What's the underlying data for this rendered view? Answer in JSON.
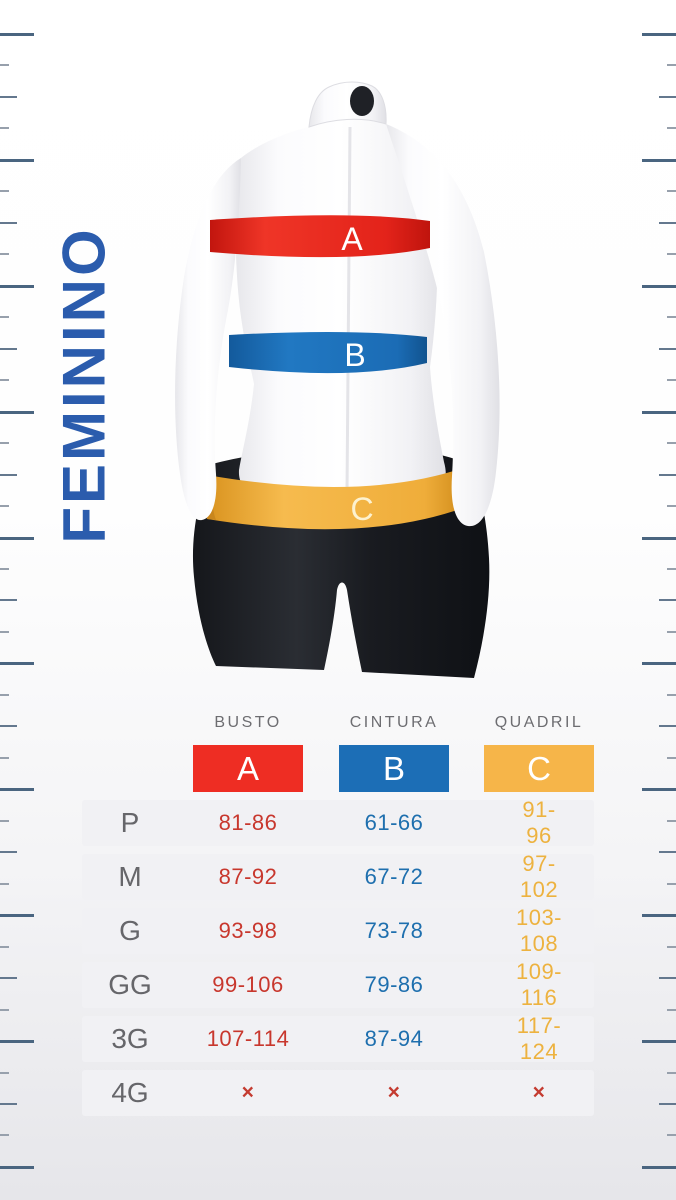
{
  "title": "FEMININO",
  "colors": {
    "red": "#ee2d23",
    "blue": "#1c6eb6",
    "yellow": "#f6b549",
    "band_red": "#e3231a",
    "band_blue": "#1b6cb5",
    "band_yellow": "#efad3a",
    "title_blue": "#2b5cad",
    "x_mark_red": "#c43b30"
  },
  "figure": {
    "bands": [
      {
        "name": "bust",
        "letter": "A",
        "color": "#e3231a"
      },
      {
        "name": "waist",
        "letter": "B",
        "color": "#1b6cb5"
      },
      {
        "name": "hip",
        "letter": "C",
        "color": "#efad3a"
      }
    ]
  },
  "table": {
    "columns": [
      {
        "header": "BUSTO",
        "letter": "A"
      },
      {
        "header": "CINTURA",
        "letter": "B"
      },
      {
        "header": "QUADRIL",
        "letter": "C"
      }
    ],
    "rows": [
      {
        "size": "P",
        "busto": "81-86",
        "cintura": "61-66",
        "quadril": "91-96"
      },
      {
        "size": "M",
        "busto": "87-92",
        "cintura": "67-72",
        "quadril": "97-102"
      },
      {
        "size": "G",
        "busto": "93-98",
        "cintura": "73-78",
        "quadril": "103-108"
      },
      {
        "size": "GG",
        "busto": "99-106",
        "cintura": "79-86",
        "quadril": "109-116"
      },
      {
        "size": "3G",
        "busto": "107-114",
        "cintura": "87-94",
        "quadril": "117-124"
      },
      {
        "size": "4G",
        "busto": "×",
        "cintura": "×",
        "quadril": "×"
      }
    ]
  }
}
